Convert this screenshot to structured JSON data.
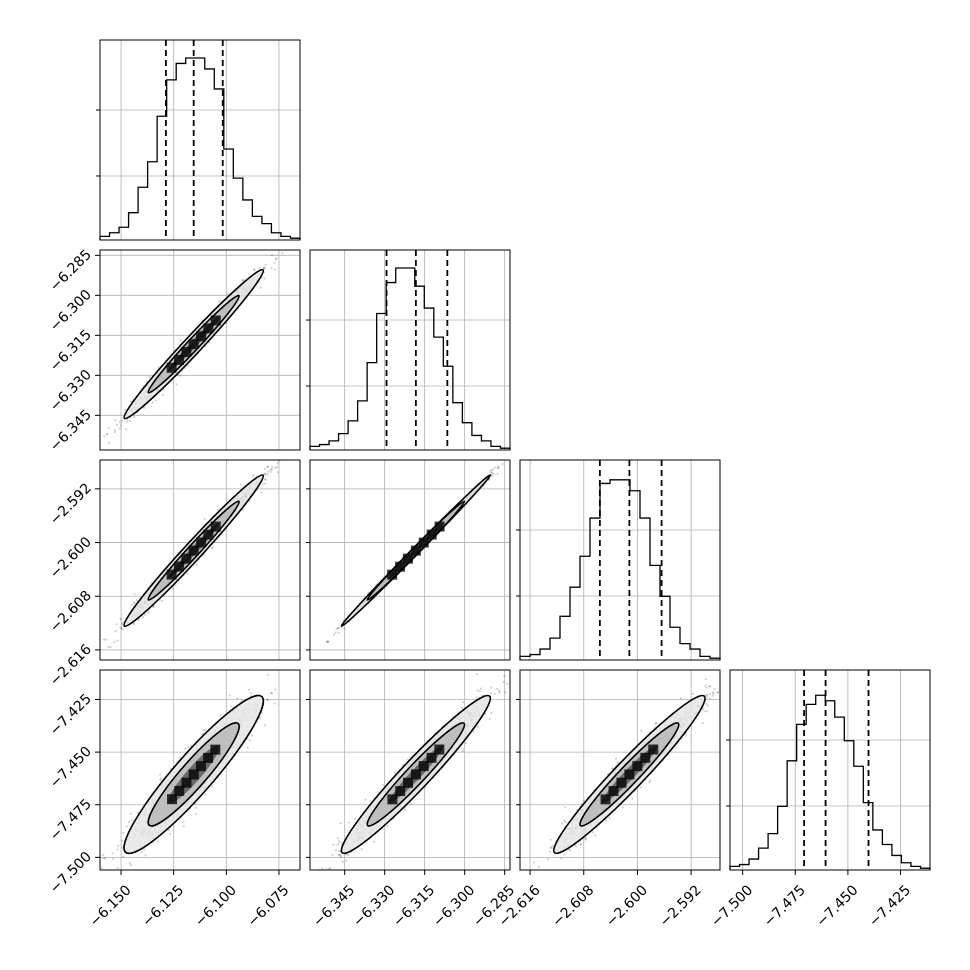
{
  "chart_data": {
    "type": "corner",
    "grid": true,
    "parameters": [
      {
        "range": [
          -6.16,
          -6.065
        ],
        "ticks": [
          -6.15,
          -6.125,
          -6.1,
          -6.075
        ],
        "tick_labels": [
          "−6.150",
          "−6.125",
          "−6.100",
          "−6.075"
        ],
        "quantiles": [
          -6.1287,
          -6.1155,
          -6.1017
        ]
      },
      {
        "range": [
          -6.358,
          -6.283
        ],
        "ticks": [
          -6.345,
          -6.33,
          -6.315,
          -6.3,
          -6.285
        ],
        "tick_labels": [
          "−6.345",
          "−6.330",
          "−6.315",
          "−6.300",
          "−6.285"
        ],
        "quantiles": [
          -6.3293,
          -6.3183,
          -6.3065
        ]
      },
      {
        "range": [
          -2.6175,
          -2.5877
        ],
        "ticks": [
          -2.616,
          -2.608,
          -2.6,
          -2.592
        ],
        "tick_labels": [
          "−2.616",
          "−2.608",
          "−2.600",
          "−2.592"
        ],
        "quantiles": [
          -2.6056,
          -2.6012,
          -2.5964
        ]
      },
      {
        "range": [
          -7.506,
          -7.411
        ],
        "ticks": [
          -7.5,
          -7.475,
          -7.45,
          -7.425
        ],
        "tick_labels": [
          "−7.500",
          "−7.475",
          "−7.450",
          "−7.425"
        ],
        "quantiles": [
          -7.4708,
          -7.4606,
          -7.4402
        ]
      }
    ],
    "histograms": [
      [
        0.02,
        0.04,
        0.07,
        0.15,
        0.29,
        0.43,
        0.68,
        0.88,
        0.97,
        1.0,
        1.0,
        0.94,
        0.83,
        0.5,
        0.34,
        0.22,
        0.13,
        0.09,
        0.04,
        0.02,
        0.01
      ],
      [
        0.02,
        0.03,
        0.05,
        0.09,
        0.16,
        0.27,
        0.48,
        0.75,
        0.92,
        1.0,
        1.0,
        0.9,
        0.78,
        0.62,
        0.46,
        0.26,
        0.15,
        0.08,
        0.05,
        0.02,
        0.01
      ],
      [
        0.02,
        0.03,
        0.06,
        0.12,
        0.24,
        0.4,
        0.57,
        0.78,
        0.97,
        0.99,
        0.99,
        0.93,
        0.78,
        0.52,
        0.35,
        0.18,
        0.09,
        0.06,
        0.02,
        0.01
      ],
      [
        0.02,
        0.03,
        0.06,
        0.12,
        0.2,
        0.35,
        0.6,
        0.8,
        0.91,
        0.96,
        0.93,
        0.84,
        0.71,
        0.57,
        0.37,
        0.22,
        0.14,
        0.08,
        0.04,
        0.02,
        0.01
      ]
    ],
    "correlations": {
      "1-0": 0.985,
      "2-0": 0.985,
      "2-1": 0.998,
      "3-0": 0.93,
      "3-1": 0.965,
      "3-2": 0.965
    }
  }
}
